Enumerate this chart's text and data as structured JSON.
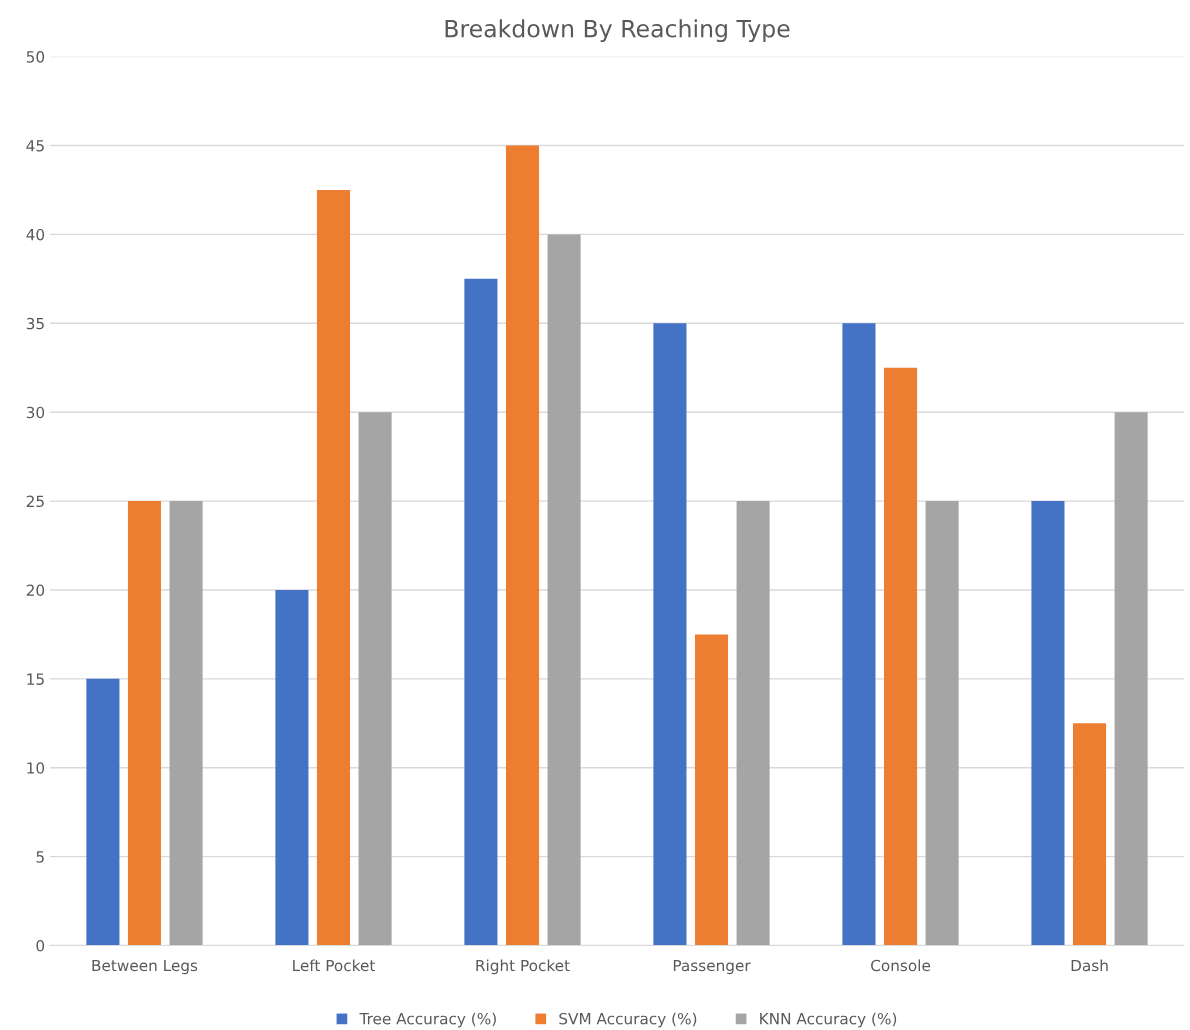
{
  "chart_data": {
    "type": "bar",
    "title": "Breakdown By Reaching Type",
    "categories": [
      "Between Legs",
      "Left Pocket",
      "Right Pocket",
      "Passenger",
      "Console",
      "Dash"
    ],
    "series": [
      {
        "name": "Tree Accuracy (%)",
        "color": "#4472c4",
        "values": [
          15,
          20,
          37.5,
          35,
          35,
          25
        ]
      },
      {
        "name": "SVM Accuracy (%)",
        "color": "#ed7d31",
        "values": [
          25,
          42.5,
          45,
          17.5,
          32.5,
          12.5
        ]
      },
      {
        "name": "KNN Accuracy (%)",
        "color": "#a5a5a5",
        "values": [
          25,
          30,
          40,
          25,
          25,
          30
        ]
      }
    ],
    "ylim": [
      0,
      50
    ],
    "yticks": [
      0,
      5,
      10,
      15,
      20,
      25,
      30,
      35,
      40,
      45,
      50
    ],
    "grid": "y",
    "legend": "bottom"
  }
}
